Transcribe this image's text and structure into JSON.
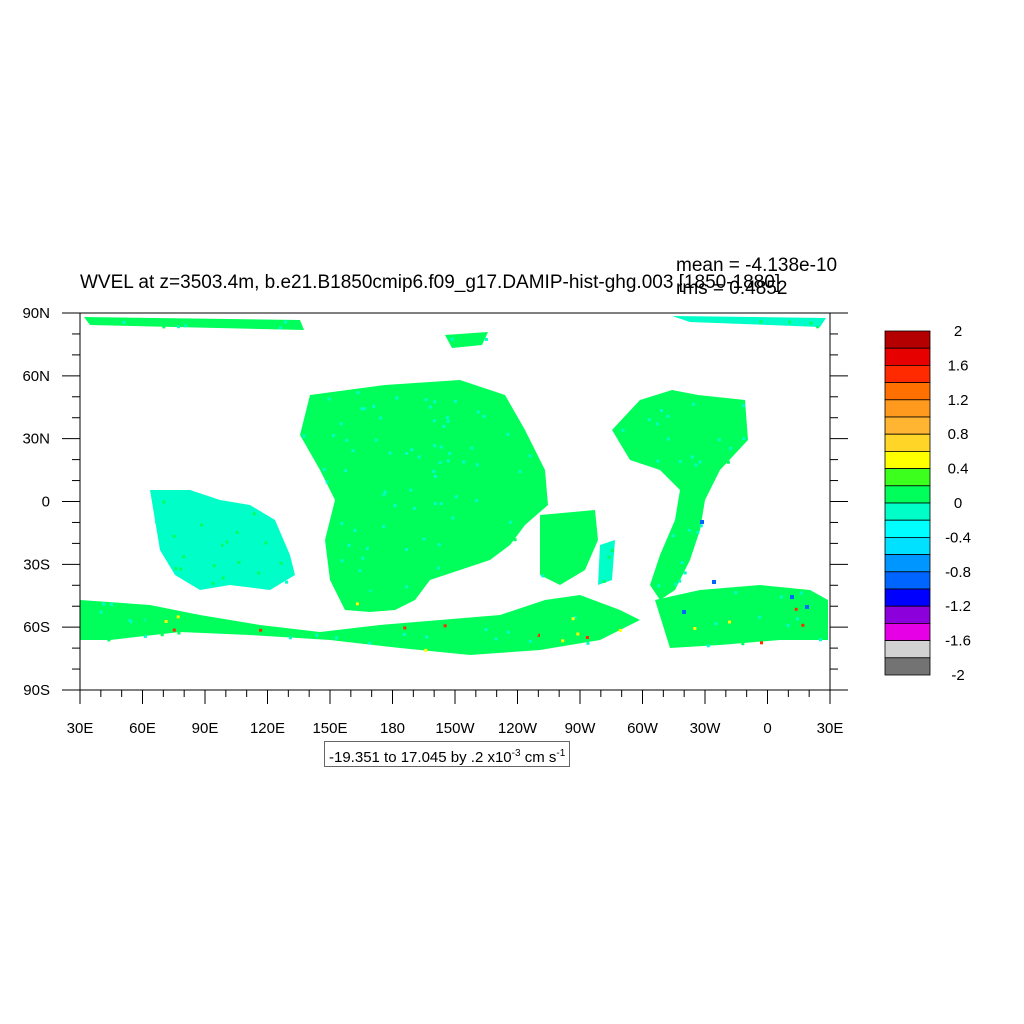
{
  "title": "WVEL at z=3503.4m, b.e21.B1850cmip6.f09_g17.DAMIP-hist-ghg.003 [1850-1880]",
  "stats": {
    "mean": "mean = -4.138e-10",
    "rms": "rms = 0.4852"
  },
  "range_label": {
    "prefix": "-19.351 to 17.045 by .2 x10",
    "exp": "-3",
    "units": " cm s",
    "units_exp": "-1"
  },
  "axes": {
    "lat_ticks": [
      "90N",
      "60N",
      "30N",
      "0",
      "30S",
      "60S",
      "90S"
    ],
    "lon_ticks": [
      "30E",
      "60E",
      "90E",
      "120E",
      "150E",
      "180",
      "150W",
      "120W",
      "90W",
      "60W",
      "30W",
      "0",
      "30E"
    ]
  },
  "colorbar": {
    "labels": [
      "2",
      "1.6",
      "1.2",
      "0.8",
      "0.4",
      "0",
      "-0.4",
      "-0.8",
      "-1.2",
      "-1.6",
      "-2"
    ],
    "colors": [
      "#b40000",
      "#e60000",
      "#ff2a00",
      "#ff7000",
      "#ff9a1e",
      "#ffb432",
      "#ffd528",
      "#ffff00",
      "#3cff1e",
      "#00ff5a",
      "#00ffc8",
      "#00ffff",
      "#00e1ff",
      "#0096ff",
      "#0064ff",
      "#0000ff",
      "#8c00dc",
      "#e600e6",
      "#d2d2d2",
      "#737373"
    ]
  },
  "field_colors": {
    "land": "#ffffff",
    "ocean_main": "#00ff5a",
    "ocean_alt": "#00ffc8",
    "pos_anom": "#ffff00",
    "strong_pos": "#ff2a00",
    "neg_anom": "#0064ff"
  }
}
